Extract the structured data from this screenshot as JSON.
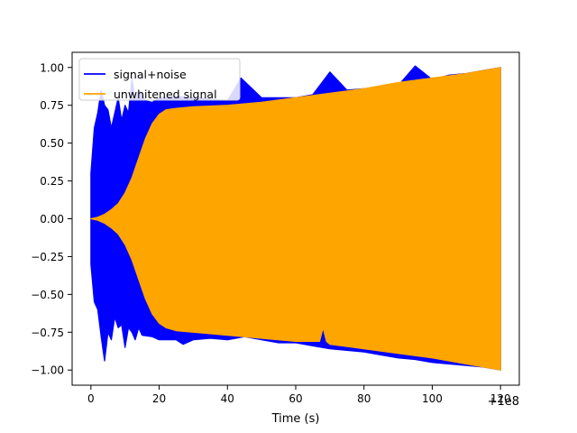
{
  "chart_data": {
    "type": "line",
    "title": "",
    "xlabel": "Time (s)",
    "ylabel": "",
    "x_offset_label": "+1e8",
    "xlim": [
      -5.5,
      125.5
    ],
    "ylim": [
      -1.1,
      1.1
    ],
    "x_ticks": [
      0,
      20,
      40,
      60,
      80,
      100,
      120
    ],
    "x_tick_labels": [
      "0",
      "20",
      "40",
      "60",
      "80",
      "100",
      "120"
    ],
    "y_ticks": [
      -1.0,
      -0.75,
      -0.5,
      -0.25,
      0.0,
      0.25,
      0.5,
      0.75,
      1.0
    ],
    "y_tick_labels": [
      "−1.00",
      "−0.75",
      "−0.50",
      "−0.25",
      "0.00",
      "0.25",
      "0.50",
      "0.75",
      "1.00"
    ],
    "grid": false,
    "legend_placement": "upper-left",
    "series": [
      {
        "name": "signal+noise",
        "color": "#0000ff",
        "envelope_upper": [
          [
            0,
            0.3
          ],
          [
            1,
            0.6
          ],
          [
            2,
            0.7
          ],
          [
            3,
            0.85
          ],
          [
            4,
            0.75
          ],
          [
            5,
            0.72
          ],
          [
            6,
            0.6
          ],
          [
            7,
            0.7
          ],
          [
            8,
            0.8
          ],
          [
            9,
            0.65
          ],
          [
            10,
            0.75
          ],
          [
            11,
            0.7
          ],
          [
            12,
            0.93
          ],
          [
            13,
            0.78
          ],
          [
            14,
            0.85
          ],
          [
            15,
            0.82
          ],
          [
            16,
            0.78
          ],
          [
            18,
            0.77
          ],
          [
            20,
            0.8
          ],
          [
            25,
            0.81
          ],
          [
            30,
            0.8
          ],
          [
            35,
            0.79
          ],
          [
            40,
            0.78
          ],
          [
            44,
            0.93
          ],
          [
            50,
            0.8
          ],
          [
            55,
            0.8
          ],
          [
            60,
            0.8
          ],
          [
            65,
            0.82
          ],
          [
            70,
            0.97
          ],
          [
            75,
            0.85
          ],
          [
            80,
            0.86
          ],
          [
            85,
            0.87
          ],
          [
            90,
            0.88
          ],
          [
            95,
            1.01
          ],
          [
            100,
            0.92
          ],
          [
            105,
            0.95
          ],
          [
            110,
            0.96
          ],
          [
            115,
            0.98
          ],
          [
            120,
            1.0
          ]
        ],
        "envelope_lower": [
          [
            0,
            -0.3
          ],
          [
            1,
            -0.55
          ],
          [
            2,
            -0.6
          ],
          [
            3,
            -0.78
          ],
          [
            4,
            -0.94
          ],
          [
            5,
            -0.75
          ],
          [
            6,
            -0.8
          ],
          [
            7,
            -0.65
          ],
          [
            8,
            -0.72
          ],
          [
            9,
            -0.7
          ],
          [
            10,
            -0.85
          ],
          [
            11,
            -0.72
          ],
          [
            12,
            -0.75
          ],
          [
            13,
            -0.8
          ],
          [
            14,
            -0.72
          ],
          [
            15,
            -0.77
          ],
          [
            18,
            -0.78
          ],
          [
            20,
            -0.8
          ],
          [
            25,
            -0.8
          ],
          [
            27,
            -0.83
          ],
          [
            30,
            -0.8
          ],
          [
            35,
            -0.79
          ],
          [
            40,
            -0.8
          ],
          [
            45,
            -0.78
          ],
          [
            50,
            -0.8
          ],
          [
            55,
            -0.82
          ],
          [
            60,
            -0.82
          ],
          [
            65,
            -0.84
          ],
          [
            70,
            -0.86
          ],
          [
            75,
            -0.87
          ],
          [
            80,
            -0.88
          ],
          [
            85,
            -0.9
          ],
          [
            90,
            -0.92
          ],
          [
            95,
            -0.93
          ],
          [
            100,
            -0.95
          ],
          [
            105,
            -0.96
          ],
          [
            110,
            -0.97
          ],
          [
            115,
            -0.98
          ],
          [
            120,
            -1.0
          ]
        ]
      },
      {
        "name": "unwhitened signal",
        "color": "#ffa500",
        "envelope_upper": [
          [
            0,
            0.0
          ],
          [
            2,
            0.01
          ],
          [
            4,
            0.03
          ],
          [
            6,
            0.06
          ],
          [
            8,
            0.1
          ],
          [
            10,
            0.17
          ],
          [
            12,
            0.27
          ],
          [
            14,
            0.4
          ],
          [
            16,
            0.53
          ],
          [
            18,
            0.63
          ],
          [
            20,
            0.69
          ],
          [
            22,
            0.72
          ],
          [
            25,
            0.73
          ],
          [
            30,
            0.74
          ],
          [
            40,
            0.75
          ],
          [
            50,
            0.77
          ],
          [
            60,
            0.8
          ],
          [
            70,
            0.83
          ],
          [
            80,
            0.86
          ],
          [
            90,
            0.9
          ],
          [
            100,
            0.93
          ],
          [
            110,
            0.96
          ],
          [
            120,
            1.0
          ]
        ],
        "envelope_lower": [
          [
            0,
            0.0
          ],
          [
            2,
            -0.01
          ],
          [
            4,
            -0.03
          ],
          [
            6,
            -0.06
          ],
          [
            8,
            -0.1
          ],
          [
            10,
            -0.17
          ],
          [
            12,
            -0.27
          ],
          [
            14,
            -0.4
          ],
          [
            16,
            -0.53
          ],
          [
            18,
            -0.63
          ],
          [
            20,
            -0.69
          ],
          [
            22,
            -0.72
          ],
          [
            25,
            -0.74
          ],
          [
            30,
            -0.75
          ],
          [
            40,
            -0.77
          ],
          [
            50,
            -0.79
          ],
          [
            60,
            -0.81
          ],
          [
            67,
            -0.81
          ],
          [
            68,
            -0.72
          ],
          [
            69,
            -0.81
          ],
          [
            70,
            -0.83
          ],
          [
            80,
            -0.86
          ],
          [
            90,
            -0.89
          ],
          [
            100,
            -0.92
          ],
          [
            110,
            -0.96
          ],
          [
            120,
            -1.0
          ]
        ]
      }
    ]
  }
}
